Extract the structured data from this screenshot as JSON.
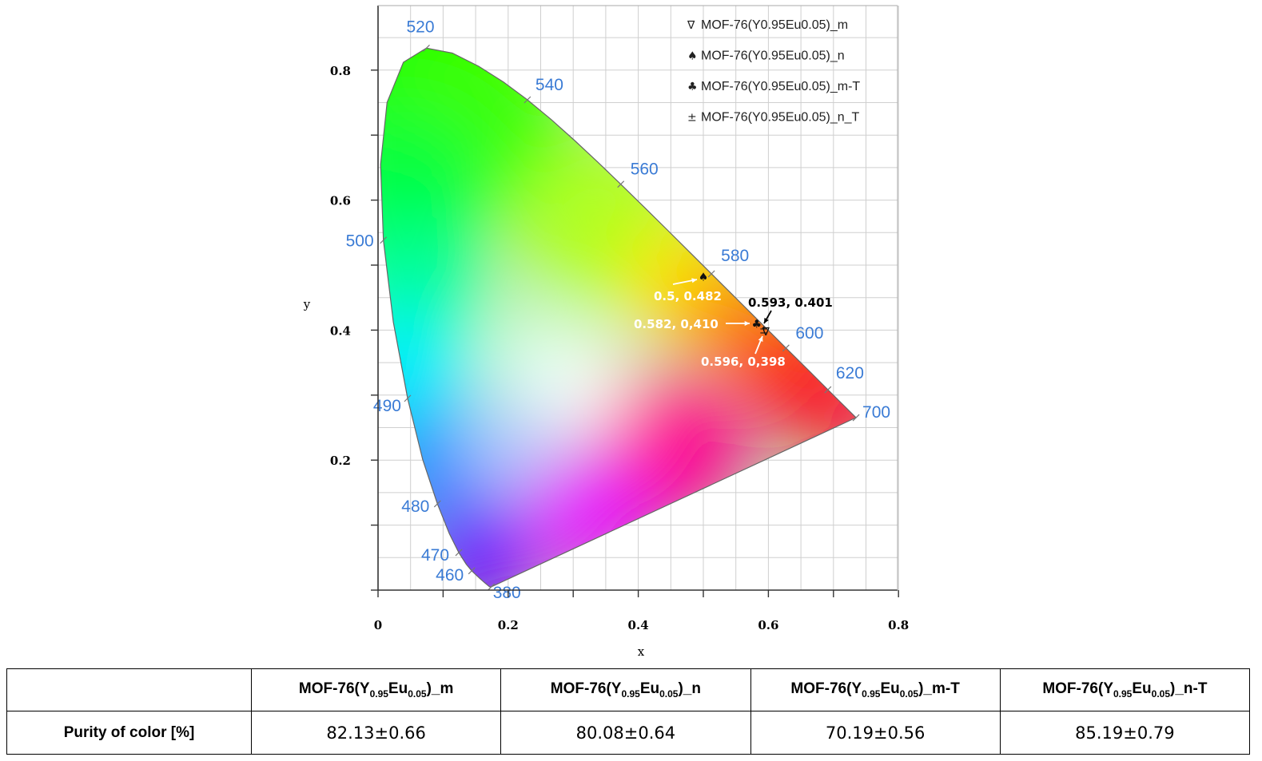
{
  "chart_data": {
    "type": "scatter",
    "title": "",
    "xlabel": "x",
    "ylabel": "y",
    "xlim": [
      0,
      0.8
    ],
    "ylim": [
      0,
      0.9
    ],
    "x_ticks": [
      "0",
      "0.2",
      "0.4",
      "0.6",
      "0.8"
    ],
    "y_ticks": [
      "0.2",
      "0.4",
      "0.6",
      "0.8"
    ],
    "grid": true,
    "legend_position": "top-right",
    "wavelength_labels": [
      {
        "text": "520",
        "x": 0.0743,
        "y": 0.8338
      },
      {
        "text": "540",
        "x": 0.2296,
        "y": 0.7543
      },
      {
        "text": "560",
        "x": 0.3731,
        "y": 0.6245
      },
      {
        "text": "580",
        "x": 0.5125,
        "y": 0.4866
      },
      {
        "text": "600",
        "x": 0.627,
        "y": 0.3725
      },
      {
        "text": "620",
        "x": 0.6915,
        "y": 0.3083
      },
      {
        "text": "700",
        "x": 0.7347,
        "y": 0.2653
      },
      {
        "text": "500",
        "x": 0.0082,
        "y": 0.5384
      },
      {
        "text": "490",
        "x": 0.0454,
        "y": 0.295
      },
      {
        "text": "480",
        "x": 0.0913,
        "y": 0.1327
      },
      {
        "text": "470",
        "x": 0.1241,
        "y": 0.0578
      },
      {
        "text": "460",
        "x": 0.144,
        "y": 0.0297
      },
      {
        "text": "380",
        "x": 0.1741,
        "y": 0.005
      }
    ],
    "series": [
      {
        "name": "MOF-76(Y0.95Eu0.05)_m",
        "symbol": "∇",
        "x": [
          0.596
        ],
        "y": [
          0.398
        ]
      },
      {
        "name": "MOF-76(Y0.95Eu0.05)_n",
        "symbol": "♠",
        "x": [
          0.5
        ],
        "y": [
          0.482
        ]
      },
      {
        "name": "MOF-76(Y0.95Eu0.05)_m-T",
        "symbol": "♣",
        "x": [
          0.582
        ],
        "y": [
          0.41
        ]
      },
      {
        "name": "MOF-76(Y0.95Eu0.05)_n_T",
        "symbol": "±",
        "x": [
          0.593
        ],
        "y": [
          0.401
        ]
      }
    ],
    "annotations": [
      {
        "text": "0.5, 0.482",
        "x": 0.5,
        "y": 0.482,
        "color": "#ffffff"
      },
      {
        "text": "0.582, 0,410",
        "x": 0.582,
        "y": 0.41,
        "color": "#ffffff"
      },
      {
        "text": "0.593, 0.401",
        "x": 0.593,
        "y": 0.401,
        "color": "#000000"
      },
      {
        "text": "0.596, 0,398",
        "x": 0.596,
        "y": 0.398,
        "color": "#ffffff"
      }
    ]
  },
  "table": {
    "headers": [
      {
        "main": "MOF-76(Y",
        "sub1": "0.95",
        "mid": "Eu",
        "sub2": "0.05",
        "tail": ")_m"
      },
      {
        "main": "MOF-76(Y",
        "sub1": "0.95",
        "mid": "Eu",
        "sub2": "0.05",
        "tail": ")_n"
      },
      {
        "main": "MOF-76(Y",
        "sub1": "0.95",
        "mid": "Eu",
        "sub2": "0.05",
        "tail": ")_m-T"
      },
      {
        "main": "MOF-76(Y",
        "sub1": "0.95",
        "mid": "Eu",
        "sub2": "0.05",
        "tail": ")_n-T"
      }
    ],
    "row_label": "Purity of color [%]",
    "values": [
      "82.13±0.66",
      "80.08±0.64",
      "70.19±0.56",
      "85.19±0.79"
    ]
  }
}
